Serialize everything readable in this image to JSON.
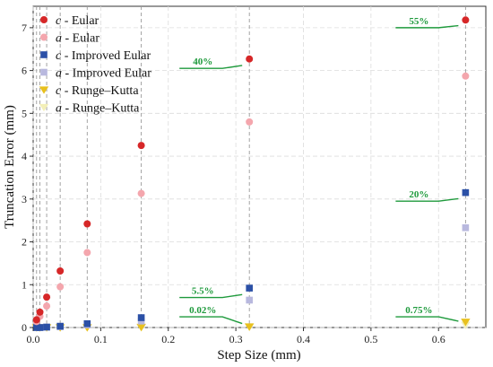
{
  "chart_data": {
    "type": "scatter",
    "title": "",
    "xlabel": "Step Size (mm)",
    "ylabel": "Truncation Error (mm)",
    "xlim": [
      0.0,
      0.67
    ],
    "ylim": [
      0,
      7.5
    ],
    "xticks": [
      "0.0",
      "0.1",
      "0.2",
      "0.3",
      "0.4",
      "0.5",
      "0.6"
    ],
    "yticks": [
      "0",
      "1",
      "2",
      "3",
      "4",
      "5",
      "6",
      "7"
    ],
    "grid": true,
    "legend_position": "top-left",
    "series": [
      {
        "name": "c - Eular",
        "var": "c",
        "method": "Eular",
        "marker": "circle",
        "color": "#d62728",
        "x": [
          0.005,
          0.01,
          0.02,
          0.04,
          0.08,
          0.16,
          0.32,
          0.64
        ],
        "y": [
          0.18,
          0.36,
          0.71,
          1.32,
          2.42,
          4.25,
          6.27,
          7.18
        ]
      },
      {
        "name": "a - Eular",
        "var": "a",
        "method": "Eular",
        "marker": "circle",
        "color": "#f4a6ad",
        "x": [
          0.005,
          0.01,
          0.02,
          0.04,
          0.08,
          0.16,
          0.32,
          0.64
        ],
        "y": [
          0.14,
          0.26,
          0.5,
          0.95,
          1.75,
          3.13,
          4.8,
          5.87
        ]
      },
      {
        "name": "c - Improved Eular",
        "var": "c",
        "method": "Improved Eular",
        "marker": "square",
        "color": "#2b50a6",
        "x": [
          0.005,
          0.01,
          0.02,
          0.04,
          0.08,
          0.16,
          0.32,
          0.64
        ],
        "y": [
          0.0,
          0.0,
          0.01,
          0.03,
          0.09,
          0.23,
          0.92,
          3.15
        ]
      },
      {
        "name": "a - Improved Eular",
        "var": "a",
        "method": "Improved Eular",
        "marker": "square",
        "color": "#b8b8de",
        "x": [
          0.005,
          0.01,
          0.02,
          0.04,
          0.08,
          0.16,
          0.32,
          0.64
        ],
        "y": [
          0.0,
          0.0,
          0.01,
          0.02,
          0.06,
          0.15,
          0.64,
          2.33
        ]
      },
      {
        "name": "c - Runge–Kutta",
        "var": "c",
        "method": "Runge–Kutta",
        "marker": "triangle-down",
        "color": "#e8c01e",
        "x": [
          0.005,
          0.01,
          0.02,
          0.04,
          0.08,
          0.16,
          0.32,
          0.64
        ],
        "y": [
          0.0,
          0.0,
          0.0,
          0.0,
          0.0,
          0.01,
          0.02,
          0.13
        ]
      },
      {
        "name": "a - Runge–Kutta",
        "var": "a",
        "method": "Runge–Kutta",
        "marker": "triangle-down",
        "color": "#f3efb8",
        "x": [
          0.005,
          0.01,
          0.02,
          0.04,
          0.08,
          0.16,
          0.32,
          0.64
        ],
        "y": [
          0.0,
          0.0,
          0.0,
          0.0,
          0.0,
          0.0,
          0.01,
          0.06
        ]
      }
    ],
    "vlines_x": [
      0.005,
      0.01,
      0.02,
      0.04,
      0.08,
      0.16,
      0.32,
      0.64
    ],
    "annotations": [
      {
        "text": "40%",
        "x": 0.32,
        "y": 6.27,
        "line_y": 6.05
      },
      {
        "text": "55%",
        "x": 0.64,
        "y": 7.18,
        "line_y": 7.0
      },
      {
        "text": "20%",
        "x": 0.64,
        "y": 3.15,
        "line_y": 2.95
      },
      {
        "text": "5.5%",
        "x": 0.32,
        "y": 0.92,
        "line_y": 0.7
      },
      {
        "text": "0.02%",
        "x": 0.32,
        "y": 0.02,
        "line_y": 0.25
      },
      {
        "text": "0.75%",
        "x": 0.64,
        "y": 0.13,
        "line_y": 0.25
      }
    ],
    "annotation_color": "#1e9a3c"
  }
}
